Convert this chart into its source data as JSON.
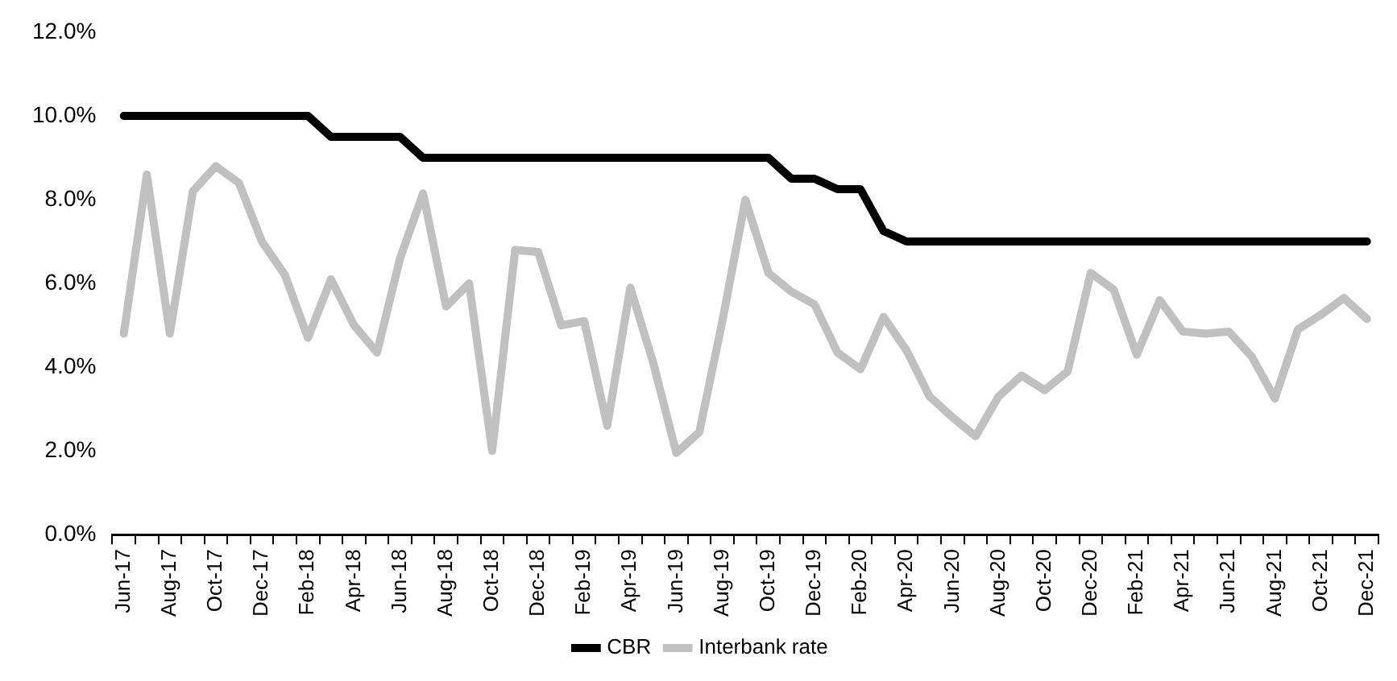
{
  "chart_data": {
    "type": "line",
    "categories": [
      "Jun-17",
      null,
      "Aug-17",
      null,
      "Oct-17",
      null,
      "Dec-17",
      null,
      "Feb-18",
      null,
      "Apr-18",
      null,
      "Jun-18",
      null,
      "Aug-18",
      null,
      "Oct-18",
      null,
      "Dec-18",
      null,
      "Feb-19",
      null,
      "Apr-19",
      null,
      "Jun-19",
      null,
      "Aug-19",
      null,
      "Oct-19",
      null,
      "Dec-19",
      null,
      "Feb-20",
      null,
      "Apr-20",
      null,
      "Jun-20",
      null,
      "Aug-20",
      null,
      "Oct-20",
      null,
      "Dec-20",
      null,
      "Feb-21",
      null,
      "Apr-21",
      null,
      "Jun-21",
      null,
      "Aug-21",
      null,
      "Oct-21",
      null,
      "Dec-21"
    ],
    "series": [
      {
        "name": "CBR",
        "color": "#000000",
        "values": [
          10,
          10,
          10,
          10,
          10,
          10,
          10,
          10,
          10,
          9.5,
          9.5,
          9.5,
          9.5,
          9,
          9,
          9,
          9,
          9,
          9,
          9,
          9,
          9,
          9,
          9,
          9,
          9,
          9,
          9,
          9,
          8.5,
          8.5,
          8.25,
          8.25,
          7.25,
          7,
          7,
          7,
          7,
          7,
          7,
          7,
          7,
          7,
          7,
          7,
          7,
          7,
          7,
          7,
          7,
          7,
          7,
          7,
          7,
          7
        ]
      },
      {
        "name": "Interbank rate",
        "color": "#c0c0c0",
        "values": [
          4.8,
          8.6,
          4.8,
          8.2,
          8.8,
          8.4,
          7.0,
          6.2,
          4.7,
          6.1,
          5.0,
          4.35,
          6.6,
          8.15,
          5.45,
          6.0,
          2.0,
          6.8,
          6.75,
          5.0,
          5.1,
          2.6,
          5.9,
          4.1,
          1.95,
          2.45,
          5.1,
          8.0,
          6.25,
          5.8,
          5.5,
          4.35,
          3.95,
          5.2,
          4.4,
          3.3,
          2.8,
          2.35,
          3.3,
          3.8,
          3.45,
          3.9,
          6.25,
          5.85,
          4.3,
          5.6,
          4.85,
          4.8,
          4.85,
          4.25,
          3.25,
          4.9,
          5.25,
          5.65,
          5.15
        ]
      }
    ],
    "ylim": [
      0,
      12
    ],
    "yticks": [
      {
        "value": 0,
        "label": "0.0%"
      },
      {
        "value": 2,
        "label": "2.0%"
      },
      {
        "value": 4,
        "label": "4.0%"
      },
      {
        "value": 6,
        "label": "6.0%"
      },
      {
        "value": 8,
        "label": "8.0%"
      },
      {
        "value": 10,
        "label": "10.0%"
      },
      {
        "value": 12,
        "label": "12.0%"
      }
    ],
    "legend": "bottom",
    "marker": "none",
    "line_style": "solid"
  }
}
